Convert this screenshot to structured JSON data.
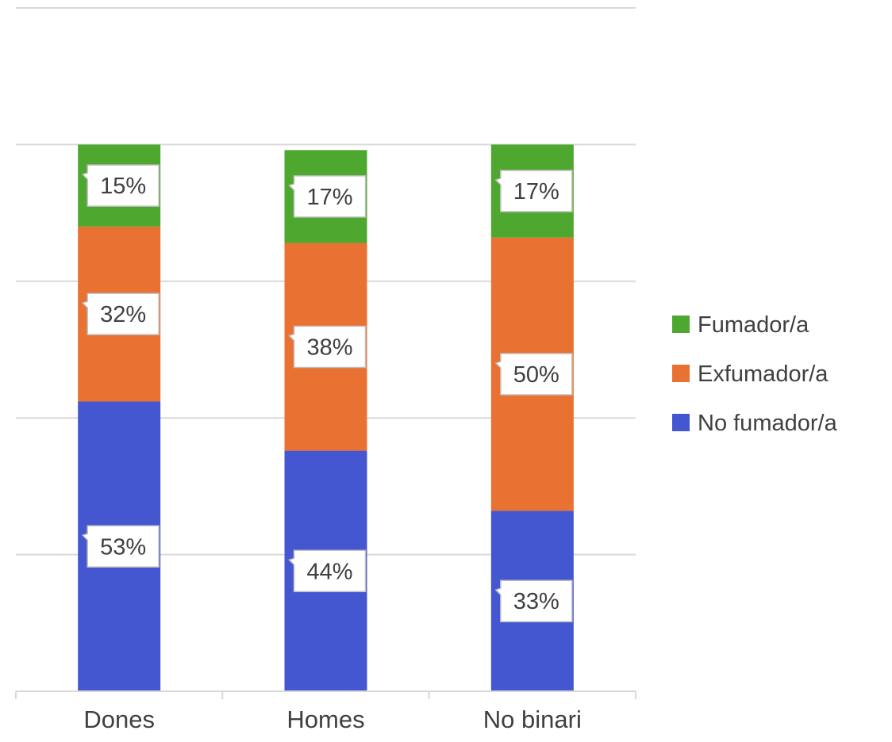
{
  "chart_data": {
    "type": "bar",
    "stacked": true,
    "percent_stacked": true,
    "categories": [
      "Dones",
      "Homes",
      "No binari"
    ],
    "series": [
      {
        "name": "No fumador/a",
        "values": [
          53,
          44,
          33
        ],
        "labels": [
          "53%",
          "44%",
          "33%"
        ],
        "color": "#4457d1"
      },
      {
        "name": "Exfumador/a",
        "values": [
          32,
          38,
          50
        ],
        "labels": [
          "32%",
          "38%",
          "50%"
        ],
        "color": "#e97132"
      },
      {
        "name": "Fumador/a",
        "values": [
          15,
          17,
          17
        ],
        "labels": [
          "15%",
          "17%",
          "17%"
        ],
        "color": "#4ea72e"
      }
    ],
    "legend_order": [
      "Fumador/a",
      "Exfumador/a",
      "No fumador/a"
    ],
    "legend_position": "right",
    "ylim": [
      0,
      125
    ],
    "y_grid_step": 25,
    "grid": true,
    "gridline_color": "#d9d9d9",
    "title": "",
    "xlabel": "",
    "ylabel": ""
  }
}
